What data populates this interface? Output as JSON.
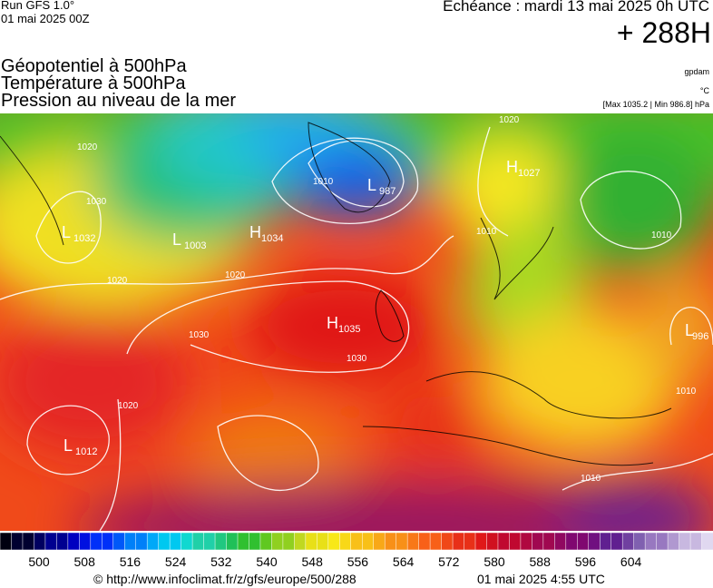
{
  "header": {
    "run": "Run GFS 1.0°",
    "run_date": "01 mai 2025 00Z",
    "echeance": "Echéance : mardi 13 mai 2025 0h UTC",
    "lead": "+ 288H",
    "field1": "Géopotentiel à 500hPa",
    "field2": "Température à 500hPa",
    "field3": "Pression au niveau de la mer",
    "unit1": "gpdam",
    "unit2": "°C",
    "unit3": "[Max 1035.2 | Min 986.8] hPa"
  },
  "map": {
    "centers": [
      {
        "letter": "L",
        "value": "1032"
      },
      {
        "letter": "L",
        "value": "1003"
      },
      {
        "letter": "H",
        "value": "1034"
      },
      {
        "letter": "L",
        "value": "987"
      },
      {
        "letter": "H",
        "value": "1027"
      },
      {
        "letter": "H",
        "value": "1035"
      },
      {
        "letter": "L",
        "value": "1012"
      },
      {
        "letter": "L",
        "value": "996"
      }
    ],
    "isobar_labels": [
      "1020",
      "1030",
      "1020",
      "1030",
      "1030",
      "1020",
      "1020",
      "1010",
      "1010",
      "1010",
      "1010",
      "1010",
      "1020"
    ]
  },
  "colorbar": {
    "ticks": [
      500,
      508,
      516,
      524,
      532,
      540,
      548,
      556,
      564,
      572,
      580,
      588,
      596,
      604
    ]
  },
  "footer": {
    "source": "© http://www.infoclimat.fr/z/gfs/europe/500/288",
    "generated": "01 mai 2025  4:55 UTC"
  }
}
